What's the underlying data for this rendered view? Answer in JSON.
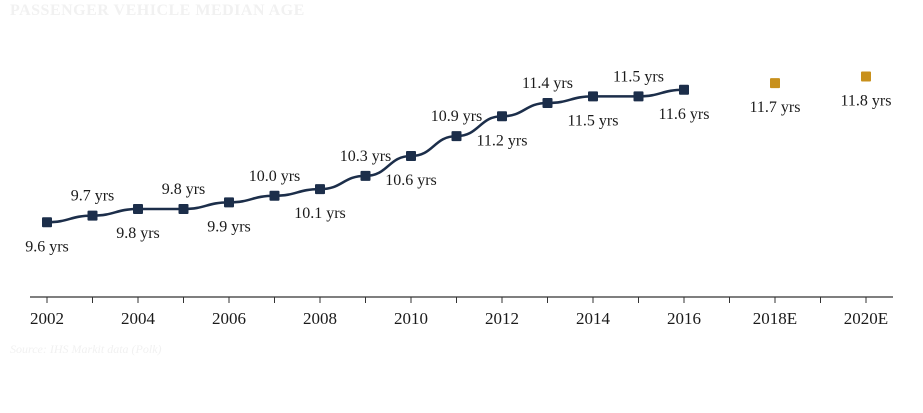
{
  "chart_data": {
    "type": "line",
    "title": "Passenger vehicle median age",
    "source": "Source: IHS Markit data (Polk)",
    "xlabel": "",
    "ylabel": "",
    "ylim": [
      9.0,
      12.2
    ],
    "grid": false,
    "legend": "none",
    "x": [
      "2002",
      "2003",
      "2004",
      "2005",
      "2006",
      "2007",
      "2008",
      "2009",
      "2010",
      "2011",
      "2012",
      "2013",
      "2014",
      "2015",
      "2016",
      "2017",
      "2018E",
      "2019",
      "2020E"
    ],
    "tick_labels": [
      "2002",
      "",
      "2004",
      "",
      "2006",
      "",
      "2008",
      "",
      "2010",
      "",
      "2012",
      "",
      "2014",
      "",
      "2016",
      "",
      "2018E",
      "",
      "2020E"
    ],
    "series": [
      {
        "values": [
          9.6,
          9.7,
          9.8,
          9.8,
          9.9,
          10.0,
          10.1,
          10.3,
          10.6,
          10.9,
          11.2,
          11.4,
          11.5,
          11.5,
          11.6,
          null,
          null,
          null,
          null
        ]
      },
      {
        "values": [
          null,
          null,
          null,
          null,
          null,
          null,
          null,
          null,
          null,
          null,
          null,
          null,
          null,
          null,
          null,
          null,
          11.7,
          null,
          11.8
        ]
      }
    ],
    "labels": [
      "9.6 yrs",
      "9.7 yrs",
      "9.8 yrs",
      "9.8 yrs",
      "9.9 yrs",
      "10.0 yrs",
      "10.1 yrs",
      "10.3 yrs",
      "10.6 yrs",
      "10.9 yrs",
      "11.2 yrs",
      "11.4 yrs",
      "11.5 yrs",
      "11.5 yrs",
      "11.6 yrs",
      "",
      "11.7 yrs",
      "",
      "11.8 yrs"
    ],
    "label_position": [
      "below",
      "above",
      "below",
      "above",
      "below",
      "above",
      "below",
      "above",
      "below",
      "above",
      "below",
      "above",
      "below",
      "above",
      "below",
      "",
      "below",
      "",
      "below"
    ],
    "colors": {
      "actual_line": "#1c2e4a",
      "actual_marker": "#1c2e4a",
      "estimate_marker": "#c8901c",
      "axis": "#333333"
    }
  }
}
